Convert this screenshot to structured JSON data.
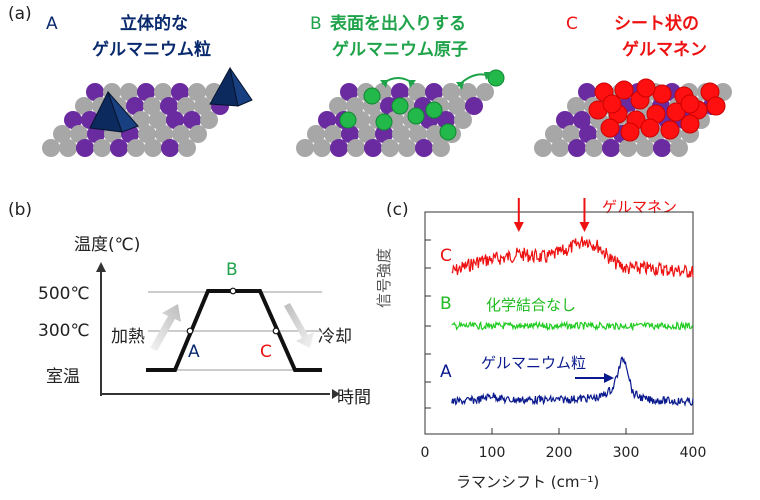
{
  "panel_labels": {
    "a": "(a)",
    "b": "(b)",
    "c": "(c)"
  },
  "panel_a": {
    "A": {
      "letter": "A",
      "line1": "立体的な",
      "line2": "ゲルマニウム粒",
      "color": "#0a2a6e"
    },
    "B": {
      "letter": "B",
      "line1": "表面を出入りする",
      "line2": "ゲルマニウム原子",
      "color": "#1fa34a"
    },
    "C": {
      "letter": "C",
      "line1": "シート状の",
      "line2": "ゲルマネン",
      "color": "#ee1111"
    }
  },
  "panel_b": {
    "y_axis_label": "温度(℃)",
    "x_axis_label": "時間",
    "levels": [
      "500℃",
      "300℃",
      "室温"
    ],
    "heat_label": "加熱",
    "cool_label": "冷却",
    "point_A": "A",
    "point_B": "B",
    "point_C": "C"
  },
  "chart_data": {
    "type": "line",
    "xlabel": "ラマンシフト (cm⁻¹)",
    "ylabel": "信号強度",
    "xlim": [
      0,
      400
    ],
    "x_ticks": [
      0,
      100,
      200,
      300,
      400
    ],
    "annotations": {
      "germanene": "ゲルマネン",
      "no_compound": "化学結合なし",
      "grain": "ゲルマニウム粒"
    },
    "series": [
      {
        "name": "C",
        "color": "#ee1111",
        "x": [
          40,
          80,
          120,
          140,
          180,
          210,
          240,
          260,
          280,
          300,
          340,
          400
        ],
        "y": [
          0.0,
          0.3,
          0.4,
          0.5,
          0.4,
          0.6,
          0.9,
          0.7,
          0.3,
          0.1,
          0.1,
          0.0
        ]
      },
      {
        "name": "B",
        "color": "#22cc22",
        "x": [
          40,
          100,
          200,
          300,
          400
        ],
        "y": [
          0.0,
          0.0,
          0.0,
          0.0,
          0.0
        ]
      },
      {
        "name": "A",
        "color": "#0a1a8e",
        "x": [
          40,
          80,
          100,
          120,
          200,
          260,
          280,
          295,
          300,
          310,
          330,
          400
        ],
        "y": [
          0.0,
          0.05,
          0.15,
          0.05,
          0.05,
          0.1,
          0.3,
          1.0,
          0.9,
          0.2,
          0.05,
          0.0
        ]
      }
    ],
    "arrows_x": [
      140,
      238
    ]
  }
}
